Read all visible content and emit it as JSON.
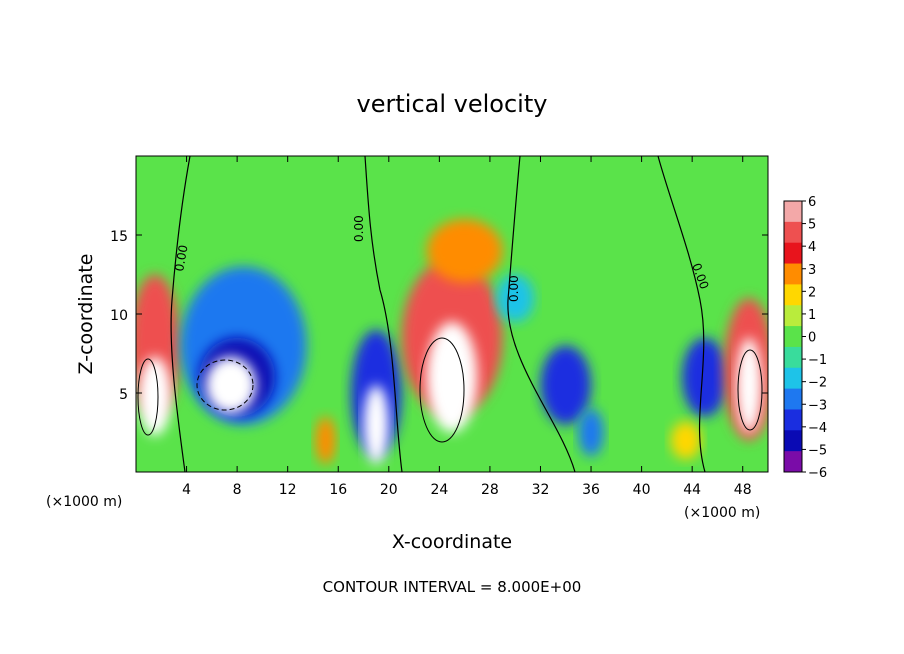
{
  "chart_data": {
    "type": "heatmap",
    "title": "vertical velocity",
    "xlabel": "X-coordinate",
    "ylabel": "Z-coordinate",
    "x_unit": "(×1000 m)",
    "x_unit_right": "(×1000 m)",
    "xlim": [
      0,
      50
    ],
    "ylim": [
      0,
      20
    ],
    "xticks": [
      4,
      8,
      12,
      16,
      20,
      24,
      28,
      32,
      36,
      40,
      44,
      48
    ],
    "yticks": [
      5,
      10,
      15
    ],
    "xtick_labels": [
      "4",
      "8",
      "12",
      "16",
      "20",
      "24",
      "28",
      "32",
      "36",
      "40",
      "44",
      "48"
    ],
    "ytick_labels": [
      "5",
      "10",
      "15"
    ],
    "colorbar": {
      "levels": [
        6,
        5,
        4,
        3,
        2,
        1,
        0,
        -1,
        -2,
        -3,
        -4,
        -5,
        -6
      ],
      "labels": [
        "6",
        "5",
        "4",
        "3",
        "2",
        "1",
        "0",
        "−1",
        "−2",
        "−3",
        "−4",
        "−5",
        "−6"
      ],
      "colors": [
        "#f3a8a8",
        "#ee5050",
        "#e8141c",
        "#ff8c00",
        "#ffd700",
        "#b9ec3c",
        "#5ae34a",
        "#39dc9c",
        "#1ec3e8",
        "#1e78f0",
        "#1a2ee0",
        "#0a0ab4",
        "#7a0ca8"
      ]
    },
    "contour_labels": [
      "0.00",
      "0.00",
      "0.00",
      "0.00"
    ],
    "annotation": "CONTOUR INTERVAL = 8.000E+00",
    "cells": [
      {
        "x": 1.5,
        "z": 8,
        "rx": 2.0,
        "rz": 4.5,
        "v": 4.5
      },
      {
        "x": 1.5,
        "z": 4.8,
        "rx": 1.3,
        "rz": 2.5,
        "v": 8
      },
      {
        "x": 8.5,
        "z": 8,
        "rx": 5.0,
        "rz": 5.0,
        "v": -3.5
      },
      {
        "x": 8.0,
        "z": 6.0,
        "rx": 3.0,
        "rz": 2.5,
        "v": -5.5
      },
      {
        "x": 7.5,
        "z": 5.5,
        "rx": 2.0,
        "rz": 1.8,
        "v": -9
      },
      {
        "x": 19.0,
        "z": 5.0,
        "rx": 2.0,
        "rz": 4.0,
        "v": -4.5
      },
      {
        "x": 19.0,
        "z": 3.0,
        "rx": 1.0,
        "rz": 2.5,
        "v": -9
      },
      {
        "x": 25.0,
        "z": 8.5,
        "rx": 4.0,
        "rz": 5.0,
        "v": 4.5
      },
      {
        "x": 25.0,
        "z": 6.0,
        "rx": 2.0,
        "rz": 3.5,
        "v": 8
      },
      {
        "x": 26.0,
        "z": 14.0,
        "rx": 3.0,
        "rz": 2.0,
        "v": 2.5
      },
      {
        "x": 30.0,
        "z": 11.0,
        "rx": 1.5,
        "rz": 1.5,
        "v": -2.2
      },
      {
        "x": 34.0,
        "z": 5.5,
        "rx": 2.0,
        "rz": 2.5,
        "v": -3.8
      },
      {
        "x": 36.0,
        "z": 2.5,
        "rx": 1.0,
        "rz": 1.5,
        "v": -3.5
      },
      {
        "x": 45.0,
        "z": 6.0,
        "rx": 1.8,
        "rz": 2.5,
        "v": -3.8
      },
      {
        "x": 48.5,
        "z": 6.5,
        "rx": 2.0,
        "rz": 4.5,
        "v": 4.5
      },
      {
        "x": 48.5,
        "z": 5.5,
        "rx": 1.0,
        "rz": 3.0,
        "v": 8
      },
      {
        "x": 15.0,
        "z": 2.0,
        "rx": 0.8,
        "rz": 1.5,
        "v": 2.5
      },
      {
        "x": 43.5,
        "z": 2.0,
        "rx": 1.2,
        "rz": 1.2,
        "v": 1.5
      }
    ]
  }
}
